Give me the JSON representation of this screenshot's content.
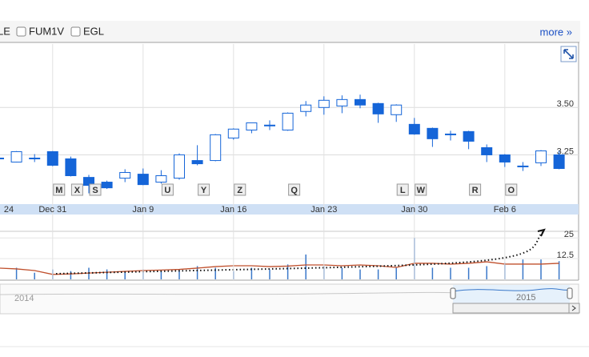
{
  "toolbar": {
    "checkboxes": [
      "LE",
      "FUM1V",
      "EGL"
    ],
    "more": "more »"
  },
  "navigator": {
    "labels": [
      "2014",
      "2015"
    ]
  },
  "chart_data": [
    {
      "type": "candlestick",
      "color": "#1565d8",
      "categories": [
        "24",
        null,
        null,
        "Dec 31",
        null,
        null,
        null,
        null,
        "Jan 9",
        null,
        null,
        null,
        null,
        "Jan 16",
        null,
        null,
        null,
        null,
        "Jan 23",
        null,
        null,
        null,
        null,
        "Jan 30",
        null,
        null,
        null,
        null,
        "Feb 6",
        null,
        null,
        null
      ],
      "open": [
        3.233,
        3.212,
        3.233,
        3.267,
        3.229,
        3.131,
        3.106,
        3.127,
        3.148,
        3.106,
        3.127,
        3.22,
        3.22,
        3.339,
        3.381,
        3.407,
        3.381,
        3.479,
        3.5,
        3.508,
        3.542,
        3.521,
        3.462,
        3.411,
        3.39,
        3.36,
        3.373,
        3.288,
        3.25,
        3.191,
        3.208,
        3.25
      ],
      "high": [
        3.24,
        3.27,
        3.254,
        3.27,
        3.241,
        3.144,
        3.114,
        3.174,
        3.178,
        3.169,
        3.258,
        3.301,
        3.36,
        3.39,
        3.42,
        3.432,
        3.474,
        3.534,
        3.559,
        3.564,
        3.568,
        3.525,
        3.517,
        3.445,
        3.394,
        3.377,
        3.377,
        3.305,
        3.254,
        3.212,
        3.275,
        3.271
      ],
      "low": [
        3.225,
        3.21,
        3.212,
        3.19,
        3.136,
        3.047,
        3.07,
        3.106,
        3.09,
        3.098,
        3.119,
        3.195,
        3.216,
        3.33,
        3.364,
        3.381,
        3.377,
        3.453,
        3.462,
        3.47,
        3.496,
        3.419,
        3.424,
        3.356,
        3.292,
        3.326,
        3.28,
        3.212,
        3.186,
        3.165,
        3.191,
        3.174
      ],
      "close": [
        3.233,
        3.267,
        3.233,
        3.195,
        3.14,
        3.089,
        3.076,
        3.157,
        3.093,
        3.14,
        3.25,
        3.203,
        3.356,
        3.386,
        3.419,
        3.407,
        3.47,
        3.513,
        3.538,
        3.542,
        3.513,
        3.466,
        3.513,
        3.36,
        3.335,
        3.36,
        3.322,
        3.25,
        3.212,
        3.191,
        3.271,
        3.178
      ],
      "flags": [
        null,
        null,
        null,
        "M",
        "X",
        "S",
        null,
        null,
        null,
        "U",
        null,
        "Y",
        null,
        "Z",
        null,
        null,
        "Q",
        null,
        null,
        null,
        null,
        null,
        "L",
        "W",
        null,
        null,
        "R",
        null,
        "O",
        null,
        null,
        null
      ],
      "ylim": [
        2.99,
        3.835
      ],
      "yticks": [
        3.25,
        {
          "value": 3.5,
          "label": "3.50"
        }
      ],
      "grid": true
    },
    {
      "type": "bar",
      "series": [
        {
          "type": "bar",
          "color": "#3a78c9",
          "values": [
            5,
            7,
            4,
            6,
            5,
            7,
            6,
            5,
            6,
            5,
            6,
            8,
            7,
            5,
            7,
            6,
            9,
            15,
            8,
            7,
            6,
            6,
            7,
            25,
            7,
            7,
            7,
            8,
            10,
            12,
            12,
            11
          ]
        },
        {
          "type": "line",
          "color": "#c0502d",
          "values": [
            6.8,
            6.3,
            5.3,
            3.0,
            3.3,
            3.8,
            4.3,
            4.8,
            5.3,
            5.6,
            6.0,
            6.8,
            7.7,
            8.2,
            8.2,
            7.7,
            8.0,
            8.7,
            8.7,
            8.2,
            8.7,
            8.2,
            7.2,
            9.7,
            9.7,
            9.2,
            9.7,
            10.6,
            9.2,
            9.2,
            9.2,
            9.7
          ]
        }
      ],
      "ylim": [
        0,
        28.5
      ],
      "yticks": [
        12.5,
        25
      ],
      "grid": true
    }
  ]
}
